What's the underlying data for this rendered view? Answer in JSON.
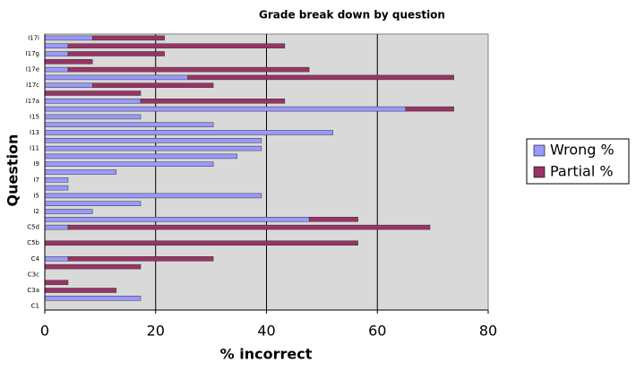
{
  "chart_data": {
    "type": "bar",
    "orientation": "horizontal",
    "stacked": true,
    "title": "Grade break down by question",
    "x_label": "% incorrect",
    "y_label": "Question",
    "categories": [
      "I17i",
      null,
      "I17g",
      null,
      "I17e",
      null,
      "I17c",
      null,
      "I17a",
      null,
      "I15",
      null,
      "I13",
      null,
      "I11",
      null,
      "I9",
      null,
      "I7",
      null,
      "I5",
      null,
      "I2",
      null,
      "C5d",
      null,
      "C5b",
      null,
      "C4",
      null,
      "C3c",
      null,
      "C3a",
      null,
      "C1"
    ],
    "series": [
      {
        "name": "Wrong %",
        "color": "#9999ff",
        "values": [
          8.6,
          4.2,
          4.2,
          0,
          4.2,
          25.8,
          8.6,
          0,
          17.3,
          65.1,
          17.3,
          30.4,
          52,
          39.1,
          39.1,
          34.7,
          30.4,
          12.9,
          4.2,
          4.2,
          39.1,
          17.3,
          8.6,
          47.7,
          4.2,
          0,
          0,
          0,
          4.2,
          0,
          0,
          0,
          0,
          17.3,
          0
        ]
      },
      {
        "name": "Partial %",
        "color": "#993366",
        "values": [
          13,
          39.1,
          17.4,
          8.6,
          43.5,
          48,
          21.8,
          17.3,
          26,
          8.7,
          0,
          0,
          0,
          0,
          0,
          0,
          0,
          0,
          0,
          0,
          0,
          0,
          0,
          8.8,
          65.3,
          0,
          56.5,
          0,
          26.2,
          17.3,
          0,
          4.2,
          12.9,
          0,
          0
        ]
      }
    ],
    "xlim": [
      0,
      80
    ],
    "xticks": [
      0,
      20,
      40,
      60,
      80
    ],
    "grid": true,
    "legend": "right"
  }
}
